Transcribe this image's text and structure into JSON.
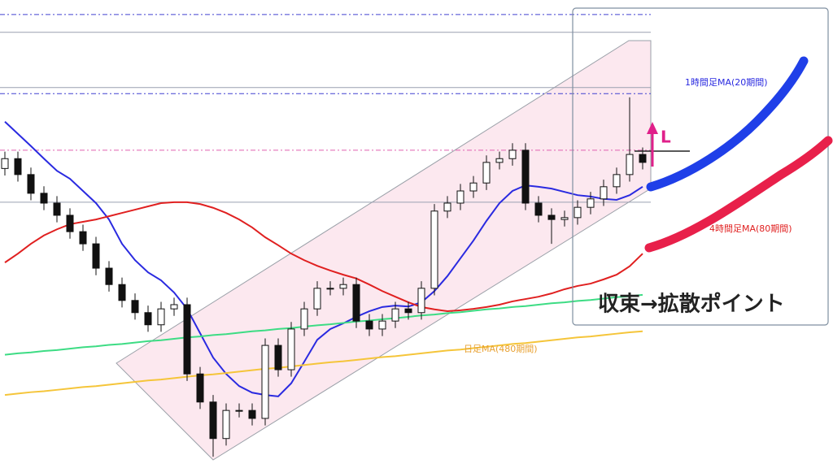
{
  "chart_data": {
    "type": "candlestick",
    "ylim": [
      0,
      100
    ],
    "open": [
      64.0,
      66.1,
      62.7,
      58.7,
      56.6,
      54.0,
      50.5,
      47.9,
      42.7,
      39.2,
      35.8,
      33.2,
      30.6,
      34.0,
      34.9,
      20.1,
      14.1,
      6.3,
      12.3,
      12.3,
      10.6,
      26.2,
      21.0,
      29.7,
      34.0,
      38.4,
      38.4,
      39.2,
      31.4,
      29.7,
      31.4,
      34.0,
      33.2,
      38.4,
      54.9,
      56.6,
      59.2,
      60.9,
      65.3,
      66.1,
      67.9,
      56.6,
      54.0,
      53.1,
      53.5,
      55.7,
      57.5,
      60.1,
      62.7,
      67.0
    ],
    "high": [
      67.6,
      67.6,
      64.2,
      60.2,
      58.1,
      55.5,
      52.0,
      49.4,
      44.2,
      40.7,
      37.3,
      34.7,
      35.5,
      36.4,
      36.4,
      21.6,
      15.6,
      13.8,
      13.8,
      13.8,
      27.7,
      27.7,
      31.2,
      35.5,
      39.9,
      39.9,
      40.7,
      40.7,
      32.9,
      32.9,
      35.5,
      35.5,
      39.9,
      56.4,
      58.1,
      60.7,
      62.4,
      66.8,
      67.6,
      69.4,
      69.4,
      58.1,
      55.5,
      55.0,
      57.2,
      59.0,
      61.6,
      64.2,
      79.2,
      68.5
    ],
    "low": [
      62.5,
      61.2,
      57.2,
      55.1,
      52.5,
      49.0,
      46.4,
      41.2,
      37.7,
      34.3,
      31.7,
      29.1,
      29.1,
      32.5,
      18.6,
      12.6,
      2.4,
      4.8,
      10.8,
      9.1,
      9.1,
      19.5,
      19.5,
      28.2,
      32.5,
      36.9,
      36.9,
      29.9,
      28.2,
      28.2,
      29.9,
      31.7,
      31.7,
      36.9,
      53.4,
      55.1,
      57.7,
      59.4,
      63.8,
      64.6,
      55.1,
      52.5,
      47.9,
      51.6,
      52.0,
      54.2,
      56.0,
      58.6,
      61.2,
      63.8
    ],
    "close": [
      66.1,
      62.7,
      58.7,
      56.6,
      54.0,
      50.5,
      47.9,
      42.7,
      39.2,
      35.8,
      33.2,
      30.6,
      34.0,
      34.9,
      20.1,
      14.1,
      6.3,
      12.3,
      12.3,
      10.6,
      26.2,
      21.0,
      29.7,
      34.0,
      38.4,
      38.4,
      39.2,
      31.4,
      29.7,
      31.4,
      34.0,
      33.2,
      38.4,
      54.9,
      56.6,
      59.2,
      60.9,
      65.3,
      66.1,
      67.9,
      56.6,
      54.0,
      53.1,
      53.5,
      55.7,
      57.5,
      60.1,
      62.7,
      67.0,
      65.3
    ],
    "series": [
      {
        "name": "1時間足MA(20期間)",
        "color": "#2a2ae0",
        "values": [
          74.0,
          71.4,
          68.8,
          66.1,
          63.5,
          61.8,
          59.2,
          56.6,
          53.1,
          47.9,
          44.4,
          41.8,
          40.1,
          37.5,
          34.0,
          28.8,
          23.6,
          20.1,
          17.5,
          16.1,
          15.6,
          15.3,
          18.1,
          22.7,
          27.4,
          29.7,
          30.9,
          32.3,
          33.5,
          34.4,
          34.7,
          34.5,
          35.4,
          37.8,
          41.0,
          44.8,
          48.6,
          52.8,
          56.6,
          59.2,
          60.4,
          60.1,
          59.7,
          59.0,
          58.3,
          58.0,
          57.5,
          57.3,
          58.3,
          60.1
        ]
      },
      {
        "name": "4時間足MA(80期間)",
        "color": "#e02020",
        "values": [
          43.9,
          45.8,
          47.9,
          49.7,
          51.0,
          52.1,
          52.6,
          53.1,
          53.8,
          54.5,
          55.2,
          55.9,
          56.6,
          56.8,
          56.8,
          56.4,
          55.6,
          54.5,
          53.1,
          51.4,
          49.3,
          47.6,
          45.8,
          44.4,
          43.2,
          42.2,
          41.3,
          40.5,
          39.2,
          37.8,
          36.6,
          35.4,
          34.4,
          33.9,
          33.5,
          33.7,
          34.0,
          34.4,
          34.9,
          35.6,
          36.1,
          36.6,
          37.3,
          38.2,
          38.9,
          39.4,
          40.3,
          41.3,
          43.1,
          45.8
        ]
      },
      {
        "color": "#3ddc84",
        "values": [
          24.2,
          24.5,
          24.7,
          25.0,
          25.2,
          25.5,
          25.8,
          26.0,
          26.3,
          26.5,
          26.8,
          27.1,
          27.3,
          27.6,
          27.9,
          28.1,
          28.4,
          28.6,
          28.9,
          29.2,
          29.4,
          29.7,
          29.9,
          30.2,
          30.5,
          30.7,
          31.0,
          31.3,
          31.5,
          31.8,
          32.0,
          32.3,
          32.6,
          32.8,
          33.1,
          33.3,
          33.6,
          33.9,
          34.1,
          34.4,
          34.6,
          34.9,
          35.2,
          35.4,
          35.7,
          35.9,
          36.2,
          36.5,
          36.7,
          37.0
        ]
      },
      {
        "name": "日足MA(480期間)",
        "color": "#f5c53a",
        "values": [
          15.6,
          15.9,
          16.2,
          16.4,
          16.7,
          17.0,
          17.3,
          17.5,
          17.8,
          18.1,
          18.4,
          18.7,
          18.9,
          19.2,
          19.5,
          19.8,
          20.0,
          20.3,
          20.6,
          20.9,
          21.2,
          21.4,
          21.7,
          22.0,
          22.3,
          22.6,
          22.8,
          23.1,
          23.4,
          23.7,
          23.9,
          24.2,
          24.5,
          24.8,
          25.1,
          25.3,
          25.6,
          25.9,
          26.2,
          26.5,
          26.7,
          27.0,
          27.3,
          27.6,
          27.9,
          28.1,
          28.4,
          28.7,
          29.0,
          29.2
        ]
      }
    ],
    "hlines": [
      {
        "value": 96.9,
        "color": "#4040d0",
        "dash": true
      },
      {
        "value": 93.1,
        "color": "#9aa0b0",
        "dash": false
      },
      {
        "value": 81.3,
        "color": "#9aa0b0",
        "dash": false
      },
      {
        "value": 80.0,
        "color": "#4040d0",
        "dash": true
      },
      {
        "value": 67.9,
        "color": "#e060b0",
        "dash": true
      },
      {
        "value": 56.8,
        "color": "#9aa0b0",
        "dash": false
      }
    ],
    "annotations": [
      "収束→拡散ポイント",
      "L"
    ]
  }
}
